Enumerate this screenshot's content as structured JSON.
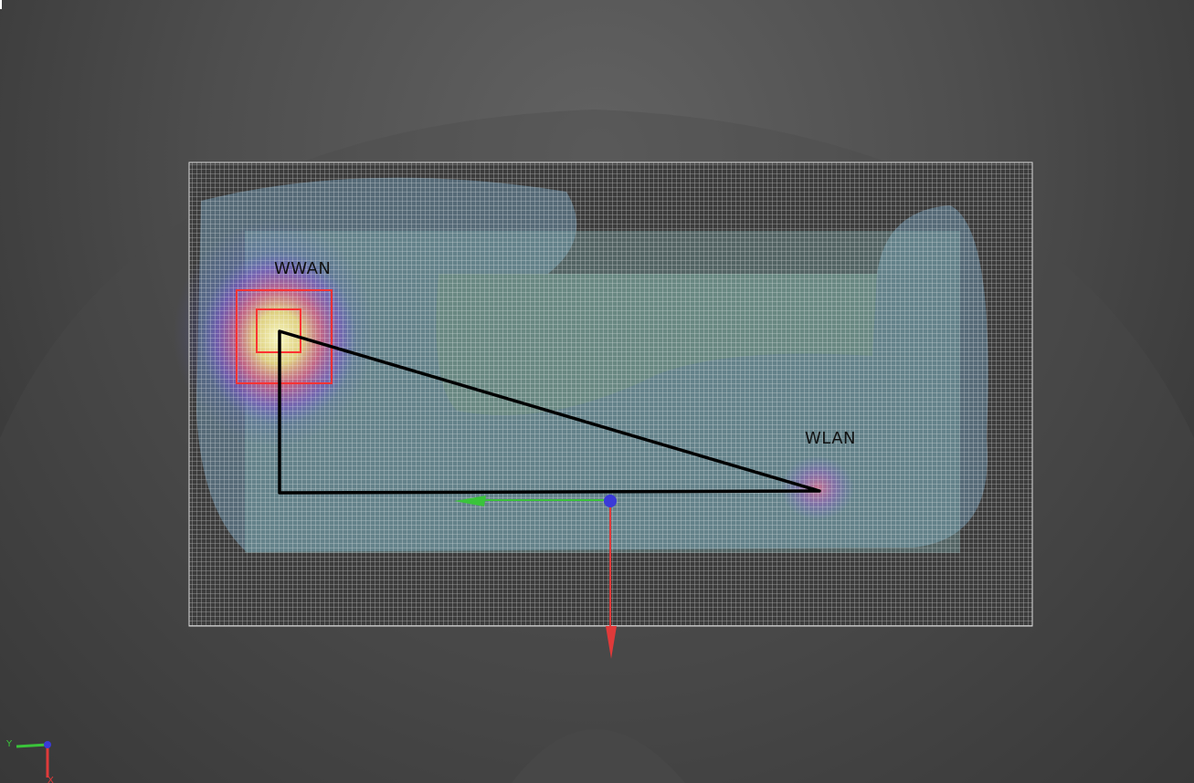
{
  "scene": {
    "labels": {
      "wwan": "WWAN",
      "wlan": "WLAN"
    },
    "mini_axes": {
      "y_label": "Y",
      "x_label": "X"
    },
    "colors": {
      "x_axis": "#e03a3a",
      "y_axis": "#3ac43a",
      "z_axis": "#3a3ad8",
      "antenna_marker": "#ff3333",
      "path": "#000000",
      "grid": "#ffffff"
    }
  }
}
